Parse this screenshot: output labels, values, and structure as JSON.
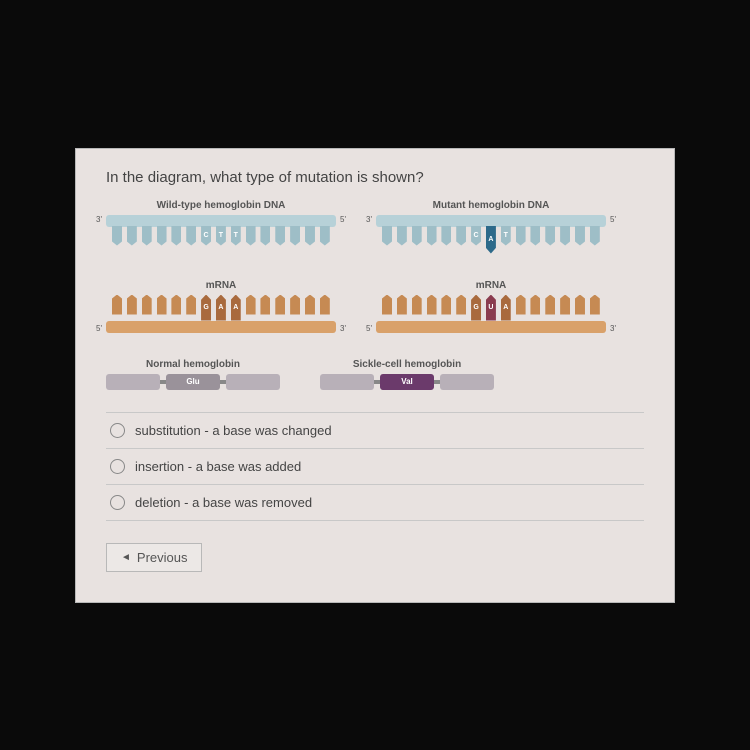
{
  "question": "In the diagram, what type of mutation is shown?",
  "dna": {
    "wild": {
      "label": "Wild-type hemoglobin DNA",
      "left": "3'",
      "right": "5'",
      "backbone_color": "#b7d1d8",
      "teeth": [
        {
          "label": "",
          "color": "#9ebec7",
          "mutant": false
        },
        {
          "label": "",
          "color": "#9ebec7",
          "mutant": false
        },
        {
          "label": "",
          "color": "#9ebec7",
          "mutant": false
        },
        {
          "label": "",
          "color": "#9ebec7",
          "mutant": false
        },
        {
          "label": "",
          "color": "#9ebec7",
          "mutant": false
        },
        {
          "label": "",
          "color": "#9ebec7",
          "mutant": false
        },
        {
          "label": "C",
          "color": "#9ebec7",
          "mutant": false
        },
        {
          "label": "T",
          "color": "#9ebec7",
          "mutant": false
        },
        {
          "label": "T",
          "color": "#9ebec7",
          "mutant": false
        },
        {
          "label": "",
          "color": "#9ebec7",
          "mutant": false
        },
        {
          "label": "",
          "color": "#9ebec7",
          "mutant": false
        },
        {
          "label": "",
          "color": "#9ebec7",
          "mutant": false
        },
        {
          "label": "",
          "color": "#9ebec7",
          "mutant": false
        },
        {
          "label": "",
          "color": "#9ebec7",
          "mutant": false
        },
        {
          "label": "",
          "color": "#9ebec7",
          "mutant": false
        }
      ]
    },
    "mutant": {
      "label": "Mutant hemoglobin DNA",
      "left": "3'",
      "right": "5'",
      "backbone_color": "#b7d1d8",
      "teeth": [
        {
          "label": "",
          "color": "#9ebec7",
          "mutant": false
        },
        {
          "label": "",
          "color": "#9ebec7",
          "mutant": false
        },
        {
          "label": "",
          "color": "#9ebec7",
          "mutant": false
        },
        {
          "label": "",
          "color": "#9ebec7",
          "mutant": false
        },
        {
          "label": "",
          "color": "#9ebec7",
          "mutant": false
        },
        {
          "label": "",
          "color": "#9ebec7",
          "mutant": false
        },
        {
          "label": "C",
          "color": "#9ebec7",
          "mutant": false
        },
        {
          "label": "A",
          "color": "#2d6a8a",
          "mutant": true
        },
        {
          "label": "T",
          "color": "#9ebec7",
          "mutant": false
        },
        {
          "label": "",
          "color": "#9ebec7",
          "mutant": false
        },
        {
          "label": "",
          "color": "#9ebec7",
          "mutant": false
        },
        {
          "label": "",
          "color": "#9ebec7",
          "mutant": false
        },
        {
          "label": "",
          "color": "#9ebec7",
          "mutant": false
        },
        {
          "label": "",
          "color": "#9ebec7",
          "mutant": false
        },
        {
          "label": "",
          "color": "#9ebec7",
          "mutant": false
        }
      ]
    }
  },
  "mrna": {
    "wild": {
      "label": "mRNA",
      "left": "5'",
      "right": "3'",
      "backbone_color": "#d9a16a",
      "teeth": [
        {
          "label": "",
          "color": "#c68a53"
        },
        {
          "label": "",
          "color": "#c68a53"
        },
        {
          "label": "",
          "color": "#c68a53"
        },
        {
          "label": "",
          "color": "#c68a53"
        },
        {
          "label": "",
          "color": "#c68a53"
        },
        {
          "label": "",
          "color": "#c68a53"
        },
        {
          "label": "G",
          "color": "#a96a3d"
        },
        {
          "label": "A",
          "color": "#a96a3d"
        },
        {
          "label": "A",
          "color": "#a96a3d"
        },
        {
          "label": "",
          "color": "#c68a53"
        },
        {
          "label": "",
          "color": "#c68a53"
        },
        {
          "label": "",
          "color": "#c68a53"
        },
        {
          "label": "",
          "color": "#c68a53"
        },
        {
          "label": "",
          "color": "#c68a53"
        },
        {
          "label": "",
          "color": "#c68a53"
        }
      ]
    },
    "mutant": {
      "label": "mRNA",
      "left": "5'",
      "right": "3'",
      "backbone_color": "#d9a16a",
      "teeth": [
        {
          "label": "",
          "color": "#c68a53"
        },
        {
          "label": "",
          "color": "#c68a53"
        },
        {
          "label": "",
          "color": "#c68a53"
        },
        {
          "label": "",
          "color": "#c68a53"
        },
        {
          "label": "",
          "color": "#c68a53"
        },
        {
          "label": "",
          "color": "#c68a53"
        },
        {
          "label": "G",
          "color": "#a96a3d"
        },
        {
          "label": "U",
          "color": "#8a3b4e"
        },
        {
          "label": "A",
          "color": "#a96a3d"
        },
        {
          "label": "",
          "color": "#c68a53"
        },
        {
          "label": "",
          "color": "#c68a53"
        },
        {
          "label": "",
          "color": "#c68a53"
        },
        {
          "label": "",
          "color": "#c68a53"
        },
        {
          "label": "",
          "color": "#c68a53"
        },
        {
          "label": "",
          "color": "#c68a53"
        }
      ]
    }
  },
  "protein": {
    "normal": {
      "label": "Normal hemoglobin",
      "segments": [
        {
          "label": "",
          "color": "#b8b0b8"
        },
        {
          "label": "Glu",
          "color": "#9a929a"
        },
        {
          "label": "",
          "color": "#b8b0b8"
        }
      ]
    },
    "sickle": {
      "label": "Sickle-cell hemoglobin",
      "segments": [
        {
          "label": "",
          "color": "#b8b0b8"
        },
        {
          "label": "Val",
          "color": "#6b3a6b"
        },
        {
          "label": "",
          "color": "#b8b0b8"
        }
      ]
    }
  },
  "options": [
    "substitution - a base was changed",
    "insertion - a base was added",
    "deletion - a base was removed"
  ],
  "prev": "Previous"
}
